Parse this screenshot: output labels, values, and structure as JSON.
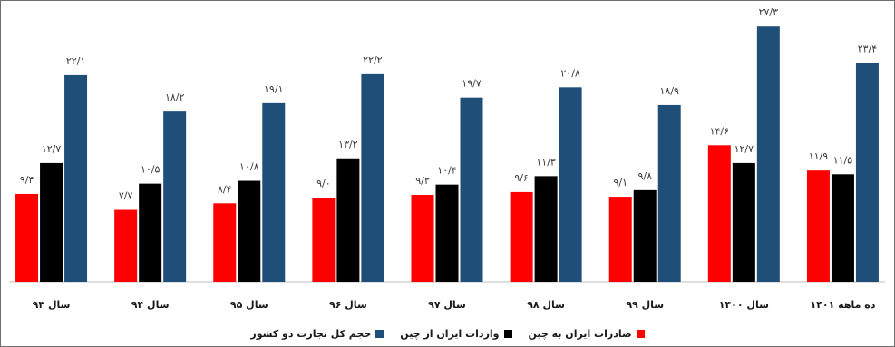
{
  "chart_data": {
    "type": "bar",
    "categories": [
      "سال ۹۳",
      "سال ۹۴",
      "سال ۹۵",
      "سال ۹۶",
      "سال ۹۷",
      "سال ۹۸",
      "سال ۹۹",
      "سال ۱۴۰۰",
      "ده ماهه ۱۴۰۱"
    ],
    "series": [
      {
        "name": "صادرات ایران به چین",
        "color": "#ff0000",
        "values": [
          9.4,
          7.7,
          8.4,
          9.0,
          9.3,
          9.6,
          9.1,
          14.6,
          11.9
        ],
        "labels": [
          "۹/۴",
          "۷/۷",
          "۸/۴",
          "۹/۰",
          "۹/۳",
          "۹/۶",
          "۹/۱",
          "۱۴/۶",
          "۱۱/۹"
        ]
      },
      {
        "name": "واردات ایران از چین",
        "color": "#000000",
        "values": [
          12.7,
          10.5,
          10.8,
          13.2,
          10.4,
          11.3,
          9.8,
          12.7,
          11.5
        ],
        "labels": [
          "۱۲/۷",
          "۱۰/۵",
          "۱۰/۸",
          "۱۳/۲",
          "۱۰/۴",
          "۱۱/۳",
          "۹/۸",
          "۱۲/۷",
          "۱۱/۵"
        ]
      },
      {
        "name": "حجم کل تجارت دو کشور",
        "color": "#1f4e79",
        "values": [
          22.1,
          18.2,
          19.1,
          22.2,
          19.7,
          20.8,
          18.9,
          27.3,
          23.4
        ],
        "labels": [
          "۲۲/۱",
          "۱۸/۲",
          "۱۹/۱",
          "۲۲/۲",
          "۱۹/۷",
          "۲۰/۸",
          "۱۸/۹",
          "۲۷/۳",
          "۲۳/۴"
        ]
      }
    ],
    "title": "",
    "xlabel": "",
    "ylabel": "",
    "ylim": [
      0,
      28
    ],
    "grid": false,
    "legend_position": "bottom"
  }
}
